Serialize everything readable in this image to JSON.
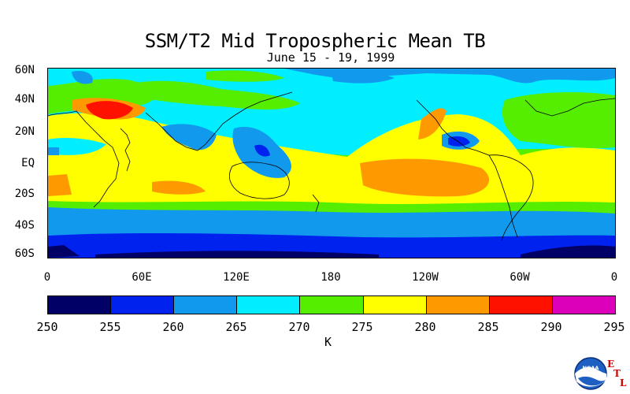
{
  "title": "SSM/T2 Mid Tropospheric Mean TB",
  "subtitle": "June 15 - 19, 1999",
  "lat_labels": [
    "60N",
    "40N",
    "20N",
    "EQ",
    "20S",
    "40S",
    "60S"
  ],
  "lon_labels": [
    "0",
    "60E",
    "120E",
    "180",
    "120W",
    "60W",
    "0"
  ],
  "colorbar": {
    "ticks": [
      "250",
      "255",
      "260",
      "265",
      "270",
      "275",
      "280",
      "285",
      "290",
      "295"
    ],
    "unit": "K",
    "colors": [
      "#000066",
      "#0022ee",
      "#1199ee",
      "#00eeff",
      "#55ee00",
      "#ffff00",
      "#ff9900",
      "#ff1100",
      "#dd00bb"
    ]
  },
  "logo": {
    "icon": "noaa-logo-icon",
    "letters": [
      "E",
      "T",
      "L"
    ],
    "text": "NOAA"
  }
}
